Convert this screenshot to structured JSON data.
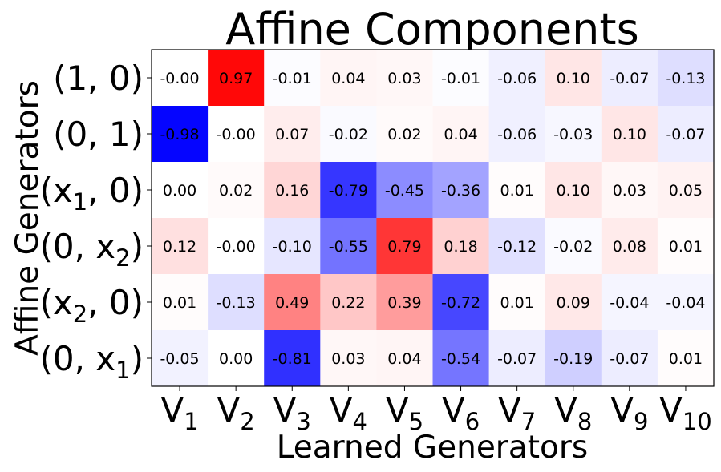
{
  "chart_data": {
    "type": "heatmap",
    "title": "Affine Components",
    "xlabel": "Learned Generators",
    "ylabel": "Affine Generators",
    "x_categories": [
      {
        "base": "V",
        "sub": "1"
      },
      {
        "base": "V",
        "sub": "2"
      },
      {
        "base": "V",
        "sub": "3"
      },
      {
        "base": "V",
        "sub": "4"
      },
      {
        "base": "V",
        "sub": "5"
      },
      {
        "base": "V",
        "sub": "6"
      },
      {
        "base": "V",
        "sub": "7"
      },
      {
        "base": "V",
        "sub": "8"
      },
      {
        "base": "V",
        "sub": "9"
      },
      {
        "base": "V",
        "sub": "10"
      }
    ],
    "y_categories": [
      {
        "pre": "(1, 0)",
        "sub": "",
        "post": ""
      },
      {
        "pre": "(0, 1)",
        "sub": "",
        "post": ""
      },
      {
        "pre": "(x",
        "sub": "1",
        "post": ", 0)"
      },
      {
        "pre": "(0, x",
        "sub": "2",
        "post": ")"
      },
      {
        "pre": "(x",
        "sub": "2",
        "post": ", 0)"
      },
      {
        "pre": "(0, x",
        "sub": "1",
        "post": ")"
      }
    ],
    "values": [
      [
        -0.0,
        0.97,
        -0.01,
        0.04,
        0.03,
        -0.01,
        -0.06,
        0.1,
        -0.07,
        -0.13
      ],
      [
        -0.98,
        -0.0,
        0.07,
        -0.02,
        0.02,
        0.04,
        -0.06,
        -0.03,
        0.1,
        -0.07
      ],
      [
        0.0,
        0.02,
        0.16,
        -0.79,
        -0.45,
        -0.36,
        0.01,
        0.1,
        0.03,
        0.05
      ],
      [
        0.12,
        -0.0,
        -0.1,
        -0.55,
        0.79,
        0.18,
        -0.12,
        -0.02,
        0.08,
        0.01
      ],
      [
        0.01,
        -0.13,
        0.49,
        0.22,
        0.39,
        -0.72,
        0.01,
        0.09,
        -0.04,
        -0.04
      ],
      [
        -0.05,
        0.0,
        -0.81,
        0.03,
        0.04,
        -0.54,
        -0.07,
        -0.19,
        -0.07,
        0.01
      ]
    ],
    "labels": [
      [
        "-0.00",
        "0.97",
        "-0.01",
        "0.04",
        "0.03",
        "-0.01",
        "-0.06",
        "0.10",
        "-0.07",
        "-0.13"
      ],
      [
        "-0.98",
        "-0.00",
        "0.07",
        "-0.02",
        "0.02",
        "0.04",
        "-0.06",
        "-0.03",
        "0.10",
        "-0.07"
      ],
      [
        "0.00",
        "0.02",
        "0.16",
        "-0.79",
        "-0.45",
        "-0.36",
        "0.01",
        "0.10",
        "0.03",
        "0.05"
      ],
      [
        "0.12",
        "-0.00",
        "-0.10",
        "-0.55",
        "0.79",
        "0.18",
        "-0.12",
        "-0.02",
        "0.08",
        "0.01"
      ],
      [
        "0.01",
        "-0.13",
        "0.49",
        "0.22",
        "0.39",
        "-0.72",
        "0.01",
        "0.09",
        "-0.04",
        "-0.04"
      ],
      [
        "-0.05",
        "0.00",
        "-0.81",
        "0.03",
        "0.04",
        "-0.54",
        "-0.07",
        "-0.19",
        "-0.07",
        "0.01"
      ]
    ],
    "colormap": "bwr",
    "vrange": [
      -1,
      1
    ],
    "colors": {
      "negative": "#0000ff",
      "zero": "#ffffff",
      "positive": "#ff0000"
    },
    "grid": false
  }
}
